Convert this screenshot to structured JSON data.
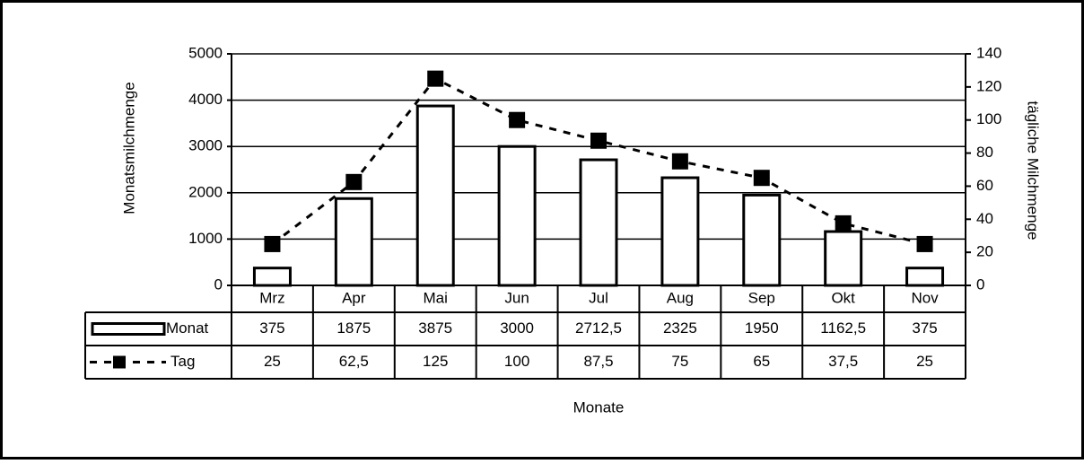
{
  "chart_data": {
    "type": "bar",
    "y_label": "Monatsmilchmenge",
    "y2_label": "tägliche Milchmenge",
    "x_label": "Monate",
    "categories": [
      "Mrz",
      "Apr",
      "Mai",
      "Jun",
      "Jul",
      "Aug",
      "Sep",
      "Okt",
      "Nov"
    ],
    "series": [
      {
        "name": "Monat",
        "type": "bar",
        "color": "#ffffff",
        "values": [
          375,
          1875,
          3875,
          3000,
          2712.5,
          2325,
          1950,
          1162.5,
          375
        ],
        "value_labels": [
          "375",
          "1875",
          "3875",
          "3000",
          "2712,5",
          "2325",
          "1950",
          "1162,5",
          "375"
        ]
      },
      {
        "name": "Tag",
        "type": "line",
        "axis": "y2",
        "color": "#000000",
        "values": [
          25,
          62.5,
          125,
          100,
          87.5,
          75,
          65,
          37.5,
          25
        ],
        "value_labels": [
          "25",
          "62,5",
          "125",
          "100",
          "87,5",
          "75",
          "65",
          "37,5",
          "25"
        ]
      }
    ],
    "ylim": [
      0,
      5000
    ],
    "yticks": [
      0,
      1000,
      2000,
      3000,
      4000,
      5000
    ],
    "y2lim": [
      0,
      140
    ],
    "y2ticks": [
      0,
      20,
      40,
      60,
      80,
      100,
      120,
      140
    ],
    "grid": true
  }
}
